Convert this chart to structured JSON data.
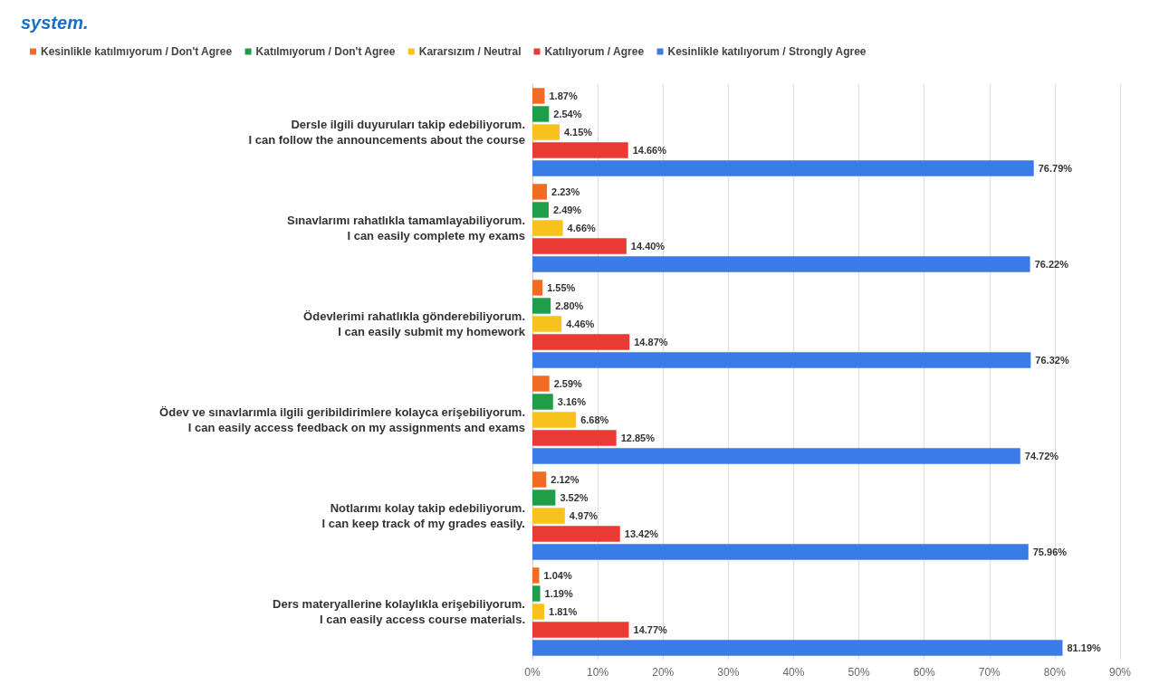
{
  "chart_data": {
    "type": "bar",
    "orientation": "horizontal",
    "title": "system.",
    "categories": [
      "Dersle ilgili duyuruları takip edebiliyorum.\nI can follow the announcements about the course",
      "Sınavlarımı rahatlıkla tamamlayabiliyorum.\nI can easily complete my exams",
      "Ödevlerimi rahatlıkla gönderebiliyorum.\nI can easily submit my homework",
      "Ödev ve sınavlarımla ilgili geribildirimlere kolayca erişebiliyorum.\nI can easily access feedback on my assignments and exams",
      "Notlarımı kolay takip edebiliyorum.\nI can keep track of my grades easily.",
      "Ders materyallerine kolaylıkla erişebiliyorum.\nI can easily access course materials."
    ],
    "series": [
      {
        "name": "Kesinlikle katılmıyorum / Don't Agree",
        "color": "#f26b22",
        "values": [
          1.87,
          2.23,
          1.55,
          2.59,
          2.12,
          1.04
        ],
        "value_labels": [
          "1.87%",
          "2.23%",
          "1.55%",
          "2.59%",
          "2.12%",
          "1.04%"
        ]
      },
      {
        "name": "Katılmıyorum / Don't Agree",
        "color": "#1e9e48",
        "values": [
          2.54,
          2.49,
          2.8,
          3.16,
          3.52,
          1.19
        ],
        "value_labels": [
          "2.54%",
          "2.49%",
          "2.80%",
          "3.16%",
          "3.52%",
          "1.19%"
        ]
      },
      {
        "name": "Kararsızım / Neutral",
        "color": "#f8c21c",
        "values": [
          4.15,
          4.66,
          4.46,
          6.68,
          4.97,
          1.81
        ],
        "value_labels": [
          "4.15%",
          "4.66%",
          "4.46%",
          "6.68%",
          "4.97%",
          "1.81%"
        ]
      },
      {
        "name": "Katılıyorum / Agree",
        "color": "#ea3a34",
        "values": [
          14.66,
          14.4,
          14.87,
          12.85,
          13.42,
          14.77
        ],
        "value_labels": [
          "14.66%",
          "14.40%",
          "14.87%",
          "12.85%",
          "13.42%",
          "14.77%"
        ]
      },
      {
        "name": "Kesinlikle katılıyorum / Strongly Agree",
        "color": "#3b7be8",
        "values": [
          76.79,
          76.22,
          76.32,
          74.72,
          75.96,
          81.19
        ],
        "value_labels": [
          "76.79%",
          "76.22%",
          "76.32%",
          "74.72%",
          "75.96%",
          "81.19%"
        ]
      }
    ],
    "xlim": [
      0,
      90
    ],
    "xticks": [
      {
        "value": 0,
        "label": "0%"
      },
      {
        "value": 10,
        "label": "10%"
      },
      {
        "value": 20,
        "label": "20%"
      },
      {
        "value": 30,
        "label": "30%"
      },
      {
        "value": 40,
        "label": "40%"
      },
      {
        "value": 50,
        "label": "50%"
      },
      {
        "value": 60,
        "label": "60%"
      },
      {
        "value": 70,
        "label": "70%"
      },
      {
        "value": 80,
        "label": "80%"
      },
      {
        "value": 90,
        "label": "90%"
      }
    ],
    "grid": "x",
    "legend": "top left"
  }
}
